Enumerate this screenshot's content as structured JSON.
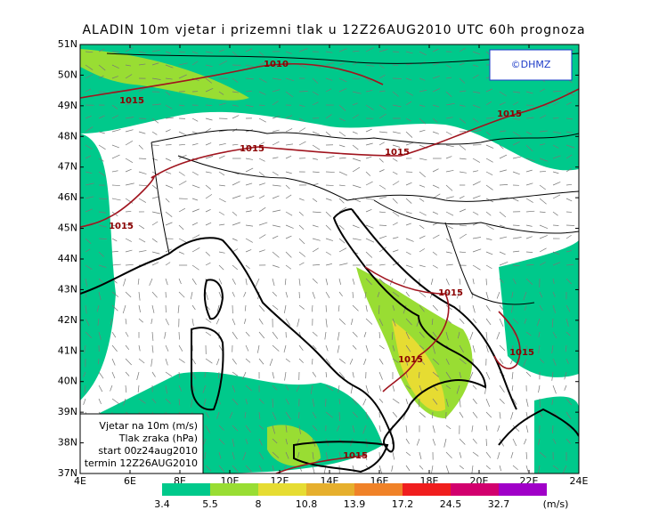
{
  "header": {
    "title": "ALADIN 10m vjetar i prizemni tlak u 12Z26AUG2010 UTC 60h prognoza",
    "logo": "©DHMZ"
  },
  "map": {
    "lat_labels": [
      "51N",
      "50N",
      "49N",
      "48N",
      "47N",
      "46N",
      "45N",
      "44N",
      "43N",
      "42N",
      "41N",
      "40N",
      "39N",
      "38N",
      "37N"
    ],
    "lon_labels": [
      "4E",
      "6E",
      "8E",
      "10E",
      "12E",
      "14E",
      "16E",
      "18E",
      "20E",
      "22E",
      "24E"
    ],
    "isobar_labels": [
      "1010",
      "1015",
      "1015",
      "1015",
      "1015",
      "1015",
      "1015",
      "1015",
      "1015",
      "1015"
    ]
  },
  "info_box": {
    "lines": [
      "Vjetar na 10m (m/s)",
      "Tlak zraka (hPa)",
      "start 00z24aug2010",
      "termin 12Z26AUG2010"
    ]
  },
  "colorbar": {
    "colors": [
      "#00c98b",
      "#99dd33",
      "#e6dc32",
      "#e6af2d",
      "#f08228",
      "#f01e1e",
      "#d2006e",
      "#a000c8"
    ],
    "labels": [
      "3.4",
      "5.5",
      "8",
      "10.8",
      "13.9",
      "17.2",
      "24.5",
      "32.7"
    ],
    "unit": "(m/s)"
  }
}
